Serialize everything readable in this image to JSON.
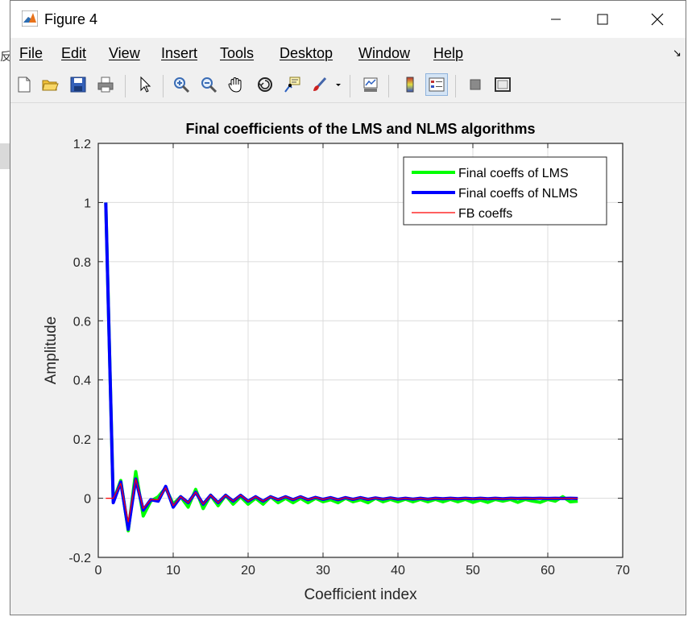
{
  "window": {
    "title": "Figure 4",
    "menu": [
      "File",
      "Edit",
      "View",
      "Insert",
      "Tools",
      "Desktop",
      "Window",
      "Help"
    ]
  },
  "background": {
    "clipped_char": "反"
  },
  "toolbar_icons": [
    "new-figure-icon",
    "open-file-icon",
    "save-icon",
    "print-icon",
    "select-arrow-icon",
    "zoom-in-icon",
    "zoom-out-icon",
    "pan-hand-icon",
    "rotate-3d-icon",
    "data-cursor-icon",
    "brush-icon",
    "brush-dropdown-icon",
    "link-plot-icon",
    "colorbar-icon",
    "legend-icon",
    "hide-plot-tools-icon",
    "show-plot-tools-icon"
  ],
  "chart_data": {
    "type": "line",
    "title": "Final coefficients of the LMS and NLMS algorithms",
    "xlabel": "Coefficient index",
    "ylabel": "Amplitude",
    "xlim": [
      0,
      70
    ],
    "ylim": [
      -0.2,
      1.2
    ],
    "xticks": [
      "0",
      "10",
      "20",
      "30",
      "40",
      "50",
      "60",
      "70"
    ],
    "yticks": [
      "-0.2",
      "0",
      "0.2",
      "0.4",
      "0.6",
      "0.8",
      "1",
      "1.2"
    ],
    "grid": true,
    "legend_position": "top-right",
    "x": [
      1,
      2,
      3,
      4,
      5,
      6,
      7,
      8,
      9,
      10,
      11,
      12,
      13,
      14,
      15,
      16,
      17,
      18,
      19,
      20,
      21,
      22,
      23,
      24,
      25,
      26,
      27,
      28,
      29,
      30,
      31,
      32,
      33,
      34,
      35,
      36,
      37,
      38,
      39,
      40,
      41,
      42,
      43,
      44,
      45,
      46,
      47,
      48,
      49,
      50,
      51,
      52,
      53,
      54,
      55,
      56,
      57,
      58,
      59,
      60,
      61,
      62,
      63,
      64
    ],
    "series": [
      {
        "name": "Final coeffs of LMS",
        "color": "#00ff00",
        "values": [
          1.0,
          -0.01,
          0.06,
          -0.11,
          0.09,
          -0.06,
          -0.01,
          0.005,
          0.035,
          -0.02,
          0.005,
          -0.03,
          0.03,
          -0.035,
          0.01,
          -0.025,
          0.01,
          -0.02,
          0.005,
          -0.02,
          0.0,
          -0.02,
          0.005,
          -0.015,
          0.0,
          -0.015,
          0.0,
          -0.015,
          0.0,
          -0.012,
          -0.005,
          -0.015,
          0.0,
          -0.012,
          -0.005,
          -0.015,
          0.0,
          -0.012,
          -0.004,
          -0.012,
          -0.003,
          -0.012,
          -0.004,
          -0.012,
          -0.004,
          -0.012,
          -0.004,
          -0.012,
          -0.004,
          -0.014,
          -0.006,
          -0.014,
          -0.004,
          -0.01,
          -0.004,
          -0.014,
          -0.004,
          -0.01,
          -0.014,
          -0.004,
          -0.01,
          0.005,
          -0.012,
          -0.01
        ]
      },
      {
        "name": "Final coeffs of NLMS",
        "color": "#0000ff",
        "values": [
          1.0,
          -0.015,
          0.055,
          -0.105,
          0.065,
          -0.04,
          -0.005,
          -0.01,
          0.04,
          -0.03,
          0.005,
          -0.015,
          0.02,
          -0.02,
          0.01,
          -0.015,
          0.01,
          -0.01,
          0.01,
          -0.01,
          0.005,
          -0.01,
          0.005,
          -0.005,
          0.005,
          -0.005,
          0.005,
          -0.005,
          0.003,
          -0.004,
          0.002,
          -0.005,
          0.002,
          -0.004,
          0.002,
          -0.004,
          0.001,
          -0.003,
          0.001,
          -0.003,
          0.0,
          -0.003,
          0.0,
          -0.003,
          0.0,
          -0.002,
          0.0,
          -0.002,
          0.0,
          -0.002,
          0.0,
          -0.002,
          0.0,
          -0.002,
          0.0,
          -0.001,
          0.0,
          -0.001,
          0.0,
          -0.001,
          0.0,
          -0.001,
          0.0,
          -0.001
        ]
      },
      {
        "name": "FB coeffs",
        "color": "#ff0000",
        "values": [
          0.0,
          0.0,
          0.05,
          -0.08,
          0.065,
          -0.035,
          -0.005,
          -0.005,
          0.035,
          -0.025,
          0.005,
          -0.015,
          0.02,
          -0.02,
          0.01,
          -0.015,
          0.01,
          -0.01,
          0.01,
          -0.01,
          0.005,
          -0.01,
          0.005,
          -0.005,
          0.005,
          -0.005,
          0.005,
          -0.005,
          0.003,
          -0.004,
          0.002,
          -0.005,
          0.002,
          -0.004,
          0.002,
          -0.004,
          0.001,
          -0.003,
          0.001,
          -0.003,
          0.0,
          -0.003,
          0.0,
          -0.003,
          0.0,
          -0.002,
          0.0,
          -0.002,
          0.0,
          -0.002,
          0.0,
          -0.002,
          0.0,
          -0.002,
          0.0,
          -0.001,
          0.0,
          -0.001,
          0.0,
          -0.001,
          0.0,
          -0.001,
          0.0,
          -0.001
        ]
      }
    ]
  }
}
